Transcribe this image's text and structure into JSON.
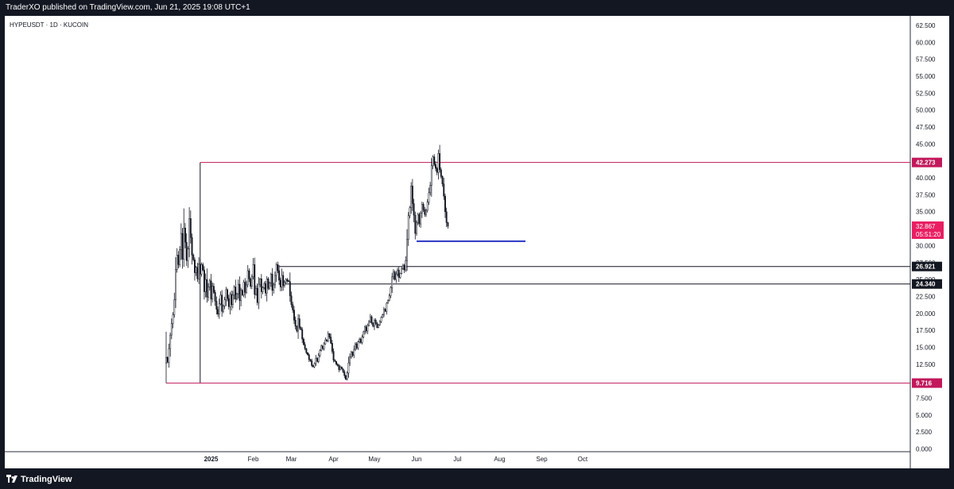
{
  "header": {
    "publisher_line": "TraderXO published on TradingView.com, Jun 21, 2025 19:08 UTC+1"
  },
  "footer": {
    "brand": "TradingView"
  },
  "colors": {
    "candle": "#131722",
    "red_level": "#c2185b",
    "blue_level": "#2936c4",
    "black_level": "#131722",
    "last_price": "#e91e63"
  },
  "chart_data": {
    "type": "candlestick",
    "symbol_label": "HYPEUSDT · 1D · KUCOIN",
    "y_ticks": [
      "62.500",
      "60.000",
      "57.500",
      "55.000",
      "52.500",
      "50.000",
      "47.500",
      "45.000",
      "42.500",
      "40.000",
      "37.500",
      "35.000",
      "32.500",
      "30.000",
      "27.500",
      "25.000",
      "22.500",
      "20.000",
      "17.500",
      "15.000",
      "12.500",
      "10.000",
      "7.500",
      "5.000",
      "2.500",
      "0.000"
    ],
    "ylim": [
      0,
      62.5
    ],
    "x_labels": [
      {
        "label": "2025",
        "date": "2025-01-01",
        "bold": true
      },
      {
        "label": "Feb",
        "date": "2025-02-01"
      },
      {
        "label": "Mar",
        "date": "2025-03-01"
      },
      {
        "label": "Apr",
        "date": "2025-04-01"
      },
      {
        "label": "May",
        "date": "2025-05-01"
      },
      {
        "label": "Jun",
        "date": "2025-06-01"
      },
      {
        "label": "Jul",
        "date": "2025-07-01"
      },
      {
        "label": "Aug",
        "date": "2025-08-01"
      },
      {
        "label": "Sep",
        "date": "2025-09-01"
      },
      {
        "label": "Oct",
        "date": "2025-10-01"
      }
    ],
    "first_date": "2024-11-29",
    "closes": [
      13.5,
      12.8,
      14.8,
      16.8,
      18.5,
      19.8,
      22.0,
      26.5,
      28.6,
      27.2,
      29.4,
      31.8,
      28.0,
      32.6,
      30.5,
      27.8,
      29.5,
      34.0,
      31.2,
      28.6,
      27.9,
      26.0,
      26.8,
      25.1,
      27.3,
      25.8,
      27.2,
      26.4,
      23.2,
      25.0,
      22.4,
      23.9,
      24.8,
      22.1,
      24.0,
      23.1,
      21.8,
      20.6,
      19.9,
      21.4,
      22.7,
      20.3,
      21.1,
      22.0,
      23.5,
      22.2,
      21.0,
      22.8,
      21.3,
      22.7,
      23.9,
      22.1,
      22.9,
      24.3,
      21.9,
      23.4,
      22.7,
      24.6,
      23.1,
      24.2,
      26.3,
      25.1,
      24.0,
      25.4,
      27.2,
      22.8,
      23.7,
      21.6,
      24.3,
      25.1,
      23.2,
      23.8,
      24.4,
      23.0,
      25.1,
      23.7,
      24.5,
      25.8,
      23.4,
      24.2,
      25.6,
      27.2,
      26.3,
      24.9,
      23.9,
      25.6,
      24.1,
      24.6,
      25.0,
      24.8,
      24.7,
      22.6,
      21.3,
      20.5,
      19.0,
      18.1,
      17.4,
      19.2,
      17.9,
      17.6,
      16.2,
      15.4,
      14.8,
      14.2,
      13.9,
      13.2,
      13.0,
      12.3,
      12.1,
      12.6,
      13.4,
      12.9,
      13.8,
      14.5,
      15.2,
      14.8,
      15.5,
      16.1,
      15.9,
      17.0,
      16.5,
      15.6,
      14.4,
      13.1,
      12.9,
      12.5,
      12.3,
      11.7,
      12.1,
      11.8,
      11.4,
      10.8,
      10.3,
      11.2,
      12.7,
      13.6,
      14.3,
      13.8,
      14.7,
      15.5,
      14.9,
      15.8,
      16.2,
      15.7,
      16.5,
      17.3,
      18.0,
      17.4,
      18.2,
      18.8,
      19.5,
      18.6,
      18.1,
      19.0,
      18.5,
      17.9,
      18.3,
      18.8,
      19.4,
      19.8,
      20.6,
      20.3,
      21.5,
      21.9,
      22.6,
      23.8,
      25.4,
      26.1,
      25.0,
      25.8,
      26.4,
      25.3,
      25.9,
      26.6,
      27.1,
      26.4,
      27.8,
      30.9,
      34.4,
      35.6,
      38.8,
      36.2,
      34.5,
      31.8,
      33.4,
      34.6,
      33.2,
      34.8,
      36.1,
      35.3,
      34.6,
      35.2,
      36.4,
      37.8,
      38.9,
      41.8,
      43.1,
      42.0,
      41.4,
      40.8,
      43.6,
      41.2,
      40.2,
      39.1,
      37.3,
      35.0,
      33.4,
      32.867
    ],
    "levels": [
      {
        "id": "top-red",
        "value": 42.273,
        "label": "42.273",
        "color": "red",
        "start_date": "2024-12-24",
        "vertical_to": 9.716
      },
      {
        "id": "bottom-red",
        "value": 9.716,
        "label": "9.716",
        "color": "red",
        "start_date": "2024-11-29"
      },
      {
        "id": "black-high",
        "value": 26.921,
        "label": "26.921",
        "color": "black",
        "start_date": "2025-02-20"
      },
      {
        "id": "black-low",
        "value": 24.34,
        "label": "24.340",
        "color": "black",
        "start_date": "2025-02-20"
      },
      {
        "id": "blue",
        "value": 30.65,
        "color": "blue",
        "start_date": "2025-06-01",
        "end_date": "2025-08-20"
      }
    ],
    "last_price": {
      "value": "32.867",
      "countdown": "05:51:20"
    }
  }
}
